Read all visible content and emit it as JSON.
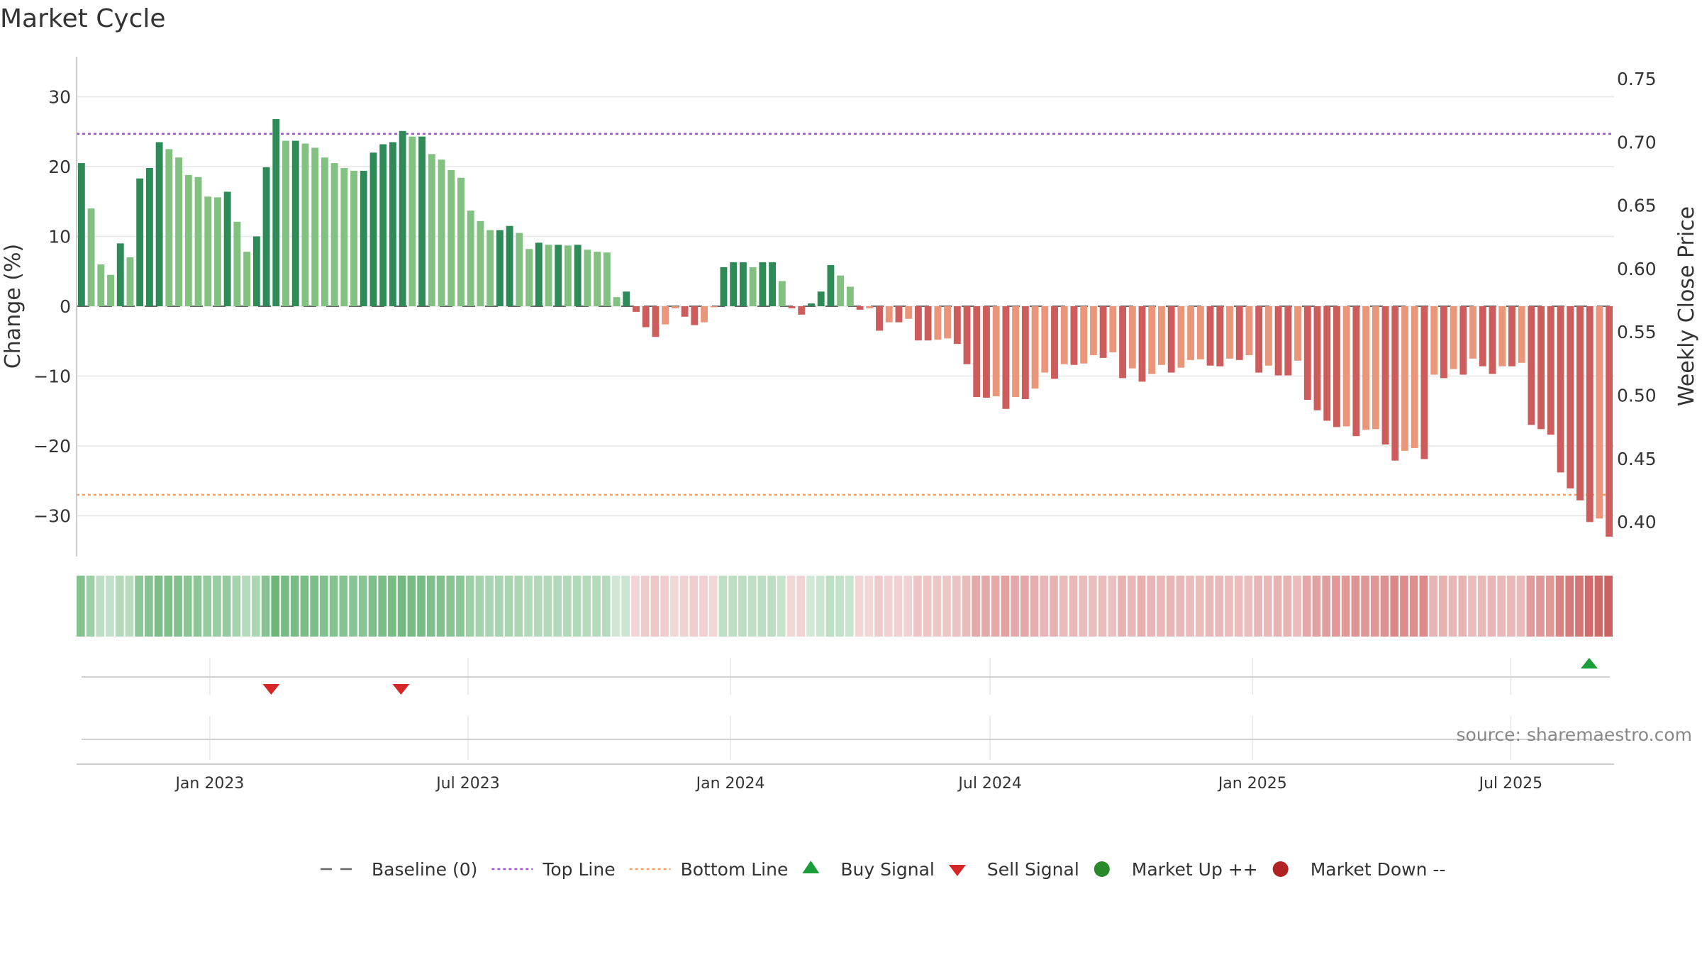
{
  "chart_data": {
    "type": "bar",
    "title": "Market Cycle",
    "ylabel_left": "Change (%)",
    "ylabel_right": "Weekly Close Price",
    "ylim_left": [
      -35,
      36
    ],
    "ylim_right": [
      0.385,
      0.755
    ],
    "yticks_left": [
      30,
      20,
      10,
      0,
      -10,
      -20,
      -30
    ],
    "yticks_left_labels": [
      "30",
      "20",
      "10",
      "0",
      "−10",
      "−20",
      "−30"
    ],
    "yticks_right": [
      0.75,
      0.7,
      0.65,
      0.6,
      0.55,
      0.5,
      0.45,
      0.4
    ],
    "yticks_right_labels": [
      "0.75",
      "0.70",
      "0.65",
      "0.60",
      "0.55",
      "0.50",
      "0.45",
      "0.40"
    ],
    "x_start": "2022-10-03",
    "x_end": "2025-09-08",
    "week_count": 158,
    "xticks": [
      {
        "date": "2023-01-01",
        "label": "Jan 2023"
      },
      {
        "date": "2023-07-01",
        "label": "Jul 2023"
      },
      {
        "date": "2024-01-01",
        "label": "Jan 2024"
      },
      {
        "date": "2024-07-01",
        "label": "Jul 2024"
      },
      {
        "date": "2025-01-01",
        "label": "Jan 2025"
      },
      {
        "date": "2025-07-01",
        "label": "Jul 2025"
      }
    ],
    "top_line": 24.7,
    "bottom_line": -27,
    "baseline": 0,
    "values": [
      20.5,
      14,
      6,
      4.5,
      9,
      7,
      18.3,
      19.8,
      23.5,
      22.5,
      21.3,
      18.8,
      18.5,
      15.7,
      15.6,
      16.4,
      12.1,
      7.8,
      10,
      19.9,
      26.8,
      23.7,
      23.7,
      23.3,
      22.7,
      21.3,
      20.5,
      19.8,
      19.4,
      19.4,
      22,
      23.2,
      23.5,
      25.1,
      24.3,
      24.3,
      21.8,
      21,
      19.5,
      18.4,
      13.7,
      12.2,
      10.9,
      10.9,
      11.5,
      10.5,
      8.2,
      9.1,
      8.8,
      8.8,
      8.7,
      8.8,
      8.1,
      7.8,
      7.7,
      1.3,
      2.1,
      -0.8,
      -3,
      -4.4,
      -2.6,
      -0.3,
      -1.5,
      -2.7,
      -2.3,
      -0.1,
      5.6,
      6.3,
      6.3,
      5.6,
      6.3,
      6.3,
      3.6,
      -0.3,
      -1.2,
      0.4,
      2.1,
      5.9,
      4.4,
      2.8,
      -0.5,
      -0.3,
      -3.5,
      -2.3,
      -2.3,
      -1.8,
      -4.9,
      -4.9,
      -4.8,
      -4.6,
      -5.4,
      -8.3,
      -13,
      -13.1,
      -12.9,
      -14.7,
      -13,
      -13.3,
      -11.8,
      -9.5,
      -10.4,
      -8.3,
      -8.4,
      -8.2,
      -7,
      -7.4,
      -6.6,
      -10.3,
      -8.9,
      -10.8,
      -9.7,
      -8.4,
      -9.5,
      -8.8,
      -7.7,
      -7.6,
      -8.5,
      -8.6,
      -7.5,
      -7.7,
      -7,
      -9.5,
      -8.5,
      -9.9,
      -9.9,
      -7.8,
      -13.4,
      -14.9,
      -16.4,
      -17.3,
      -17.2,
      -18.6,
      -17.7,
      -17.6,
      -19.8,
      -22.1,
      -20.7,
      -20.3,
      -21.9,
      -9.8,
      -10.3,
      -9,
      -9.8,
      -7.5,
      -8.6,
      -9.7,
      -8.6,
      -8.6,
      -8.1,
      -17,
      -17.6,
      -18.4,
      -23.8,
      -26.1,
      -27.8,
      -30.9,
      -30.4,
      -33
    ]
  },
  "signals": {
    "sell": [
      {
        "date": "2023-02-13"
      },
      {
        "date": "2023-05-15"
      }
    ],
    "buy": [
      {
        "date": "2025-08-25"
      }
    ]
  },
  "legend": [
    {
      "key": "baseline",
      "label": "Baseline (0)",
      "color": "#666666"
    },
    {
      "key": "top",
      "label": "Top Line",
      "color": "#9b59c6"
    },
    {
      "key": "bottom",
      "label": "Bottom Line",
      "color": "#f0a060"
    },
    {
      "key": "buy",
      "label": "Buy Signal",
      "color": "#1a9e3a"
    },
    {
      "key": "sell",
      "label": "Sell Signal",
      "color": "#d62728"
    },
    {
      "key": "up",
      "label": "Market Up ++",
      "color": "#2a8a2a"
    },
    {
      "key": "down",
      "label": "Market Down --",
      "color": "#b22222"
    }
  ],
  "colors": {
    "up_strong": "#2e8b57",
    "up_light": "#82c182",
    "down_strong": "#cd5c5c",
    "down_light": "#e9967a",
    "grid": "#e6e6e6",
    "axis": "#bbbbbb"
  },
  "source": "source: sharemaestro.com"
}
